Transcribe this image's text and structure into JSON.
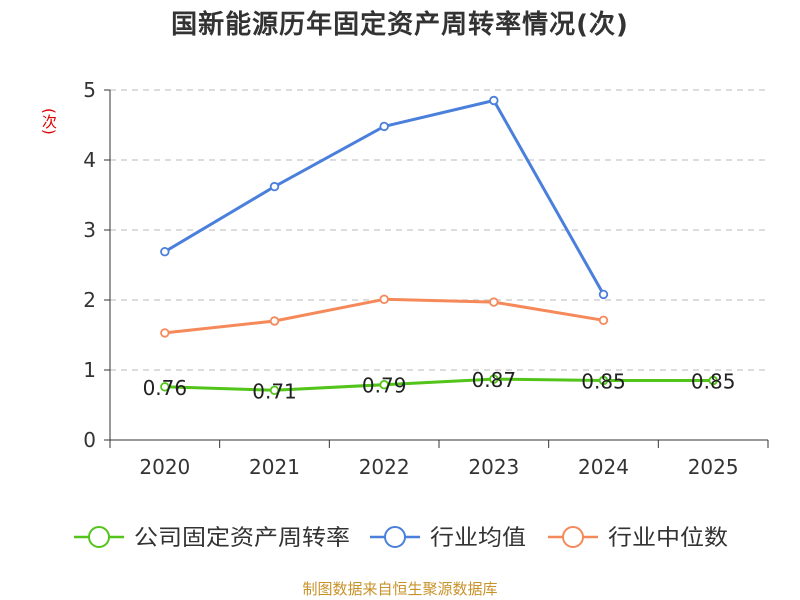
{
  "title": "国新能源历年固定资产周转率情况(次)",
  "ylabel": "(次)",
  "source": "制图数据来自恒生聚源数据库",
  "chart_data": {
    "type": "line",
    "title": "国新能源历年固定资产周转率情况(次)",
    "xlabel": "",
    "ylabel": "(次)",
    "x": [
      "2020",
      "2021",
      "2022",
      "2023",
      "2024",
      "2025"
    ],
    "ylim": [
      0,
      5
    ],
    "yticks": [
      0,
      1,
      2,
      3,
      4,
      5
    ],
    "grid": true,
    "legend_position": "bottom",
    "series": [
      {
        "name": "公司固定资产周转率",
        "color": "#52c41a",
        "values": [
          0.76,
          0.71,
          0.79,
          0.87,
          0.85,
          0.85
        ],
        "labels": [
          "0.76",
          "0.71",
          "0.79",
          "0.87",
          "0.85",
          "0.85"
        ]
      },
      {
        "name": "行业均值",
        "color": "#4a7fdb",
        "values": [
          2.69,
          3.62,
          4.48,
          4.85,
          2.08,
          null
        ]
      },
      {
        "name": "行业中位数",
        "color": "#f5895a",
        "values": [
          1.53,
          1.7,
          2.01,
          1.97,
          1.71,
          null
        ]
      }
    ]
  }
}
